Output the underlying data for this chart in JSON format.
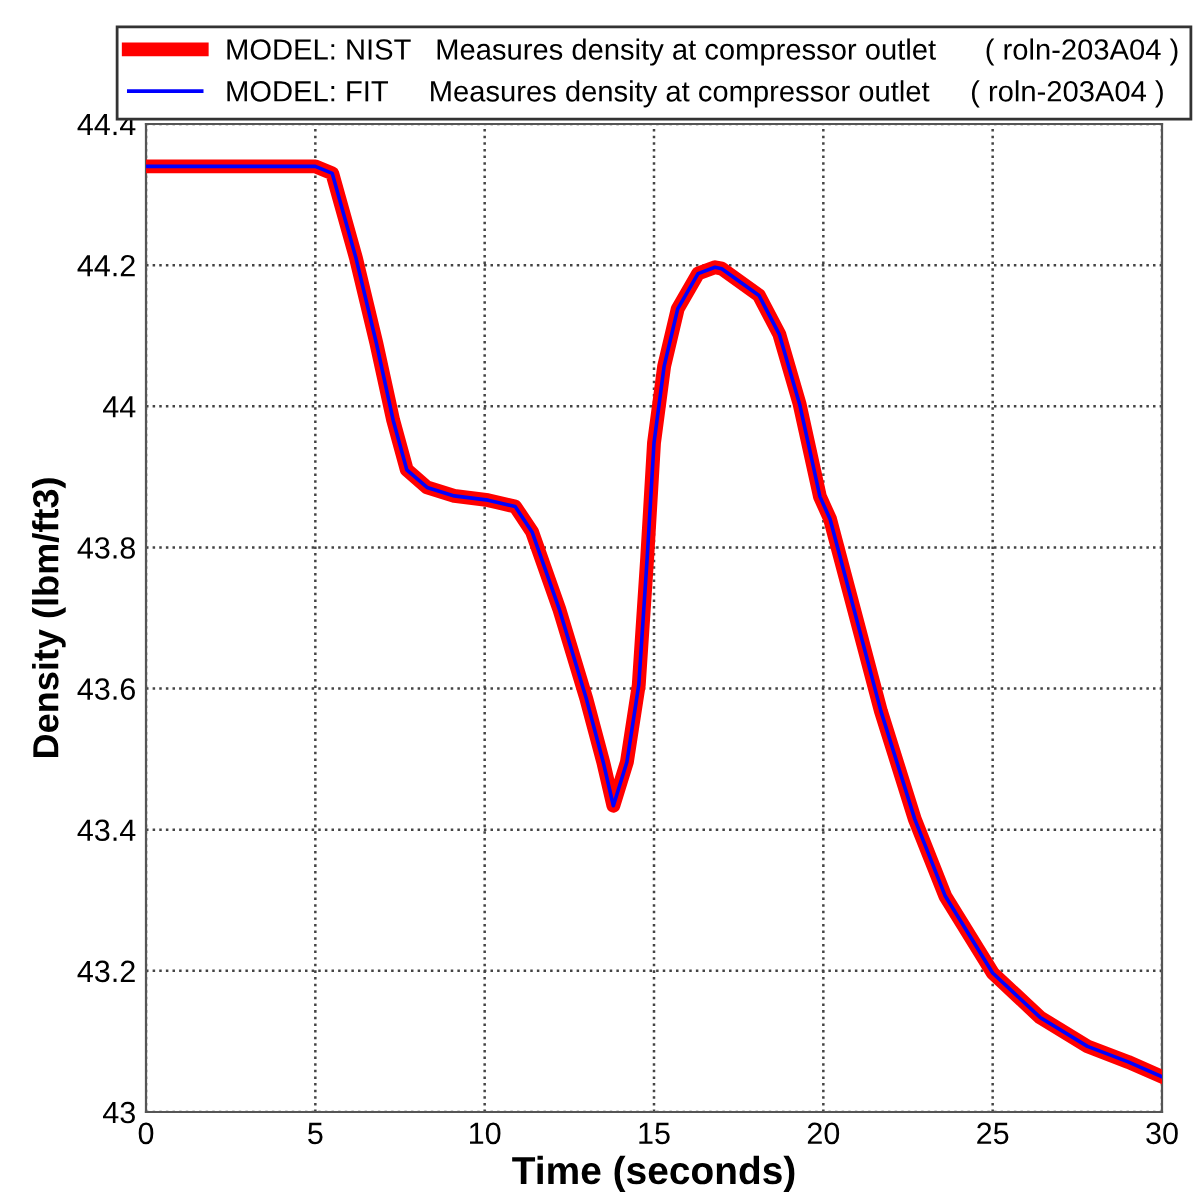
{
  "chart_data": {
    "type": "line",
    "xlabel": "Time (seconds)",
    "ylabel": "Density (lbm/ft3)",
    "x": [
      0,
      5.0,
      5.5,
      6.2,
      6.8,
      7.3,
      7.7,
      8.3,
      9.1,
      10.1,
      10.9,
      11.4,
      12.2,
      13.0,
      13.5,
      13.8,
      14.2,
      14.55,
      14.8,
      15.0,
      15.3,
      15.7,
      16.3,
      16.8,
      17.0,
      18.1,
      18.7,
      19.3,
      19.9,
      20.2,
      20.9,
      21.7,
      22.7,
      23.6,
      25.0,
      26.4,
      27.8,
      29.0,
      30
    ],
    "series": [
      {
        "name": "MODEL: NIST   Measures density at compressor outlet      ( roln-203A04 )",
        "color": "#ff0000",
        "values": [
          44.34,
          44.34,
          44.33,
          44.21,
          44.09,
          43.98,
          43.91,
          43.885,
          43.873,
          43.867,
          43.858,
          43.822,
          43.713,
          43.586,
          43.496,
          43.434,
          43.496,
          43.605,
          43.786,
          43.948,
          44.057,
          44.138,
          44.188,
          44.197,
          44.195,
          44.157,
          44.102,
          44.003,
          43.872,
          43.84,
          43.713,
          43.568,
          43.415,
          43.306,
          43.197,
          43.134,
          43.093,
          43.071,
          43.05
        ]
      },
      {
        "name": "MODEL: FIT     Measures density at compressor outlet     ( roln-203A04 )",
        "color": "#0000ff",
        "values": [
          44.34,
          44.34,
          44.33,
          44.21,
          44.09,
          43.98,
          43.91,
          43.885,
          43.873,
          43.867,
          43.858,
          43.822,
          43.713,
          43.586,
          43.496,
          43.434,
          43.496,
          43.605,
          43.786,
          43.948,
          44.057,
          44.138,
          44.188,
          44.197,
          44.195,
          44.157,
          44.102,
          44.003,
          43.872,
          43.84,
          43.713,
          43.568,
          43.415,
          43.306,
          43.197,
          43.134,
          43.093,
          43.071,
          43.05
        ]
      }
    ],
    "xlim": [
      0,
      30
    ],
    "xticks": [
      0,
      5,
      10,
      15,
      20,
      25,
      30
    ],
    "ylim": [
      43,
      44.4
    ],
    "yticks": [
      43,
      43.2,
      43.4,
      43.6,
      43.8,
      44,
      44.2,
      44.4
    ],
    "grid": true,
    "legend": "top",
    "line_style": "solid",
    "marker": "none"
  }
}
